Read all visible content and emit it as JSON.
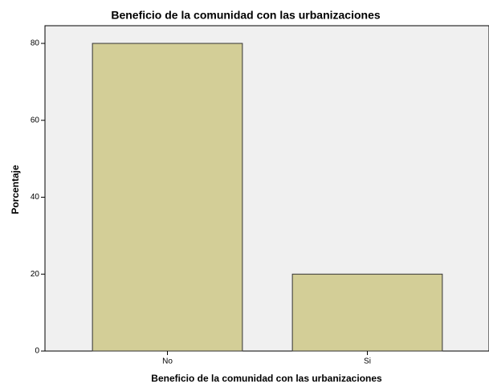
{
  "chart_data": {
    "type": "bar",
    "title": "Beneficio de la comunidad con las urbanizaciones",
    "x_label": "Beneficio de la comunidad con las urbanizaciones",
    "y_label": "Porcentaje",
    "categories": [
      "No",
      "Si"
    ],
    "values": [
      80,
      20
    ],
    "color": "#d3ce97",
    "ylim": [
      0,
      84.6
    ],
    "yticks": [
      0,
      20,
      40,
      60,
      80
    ],
    "grid": false
  }
}
